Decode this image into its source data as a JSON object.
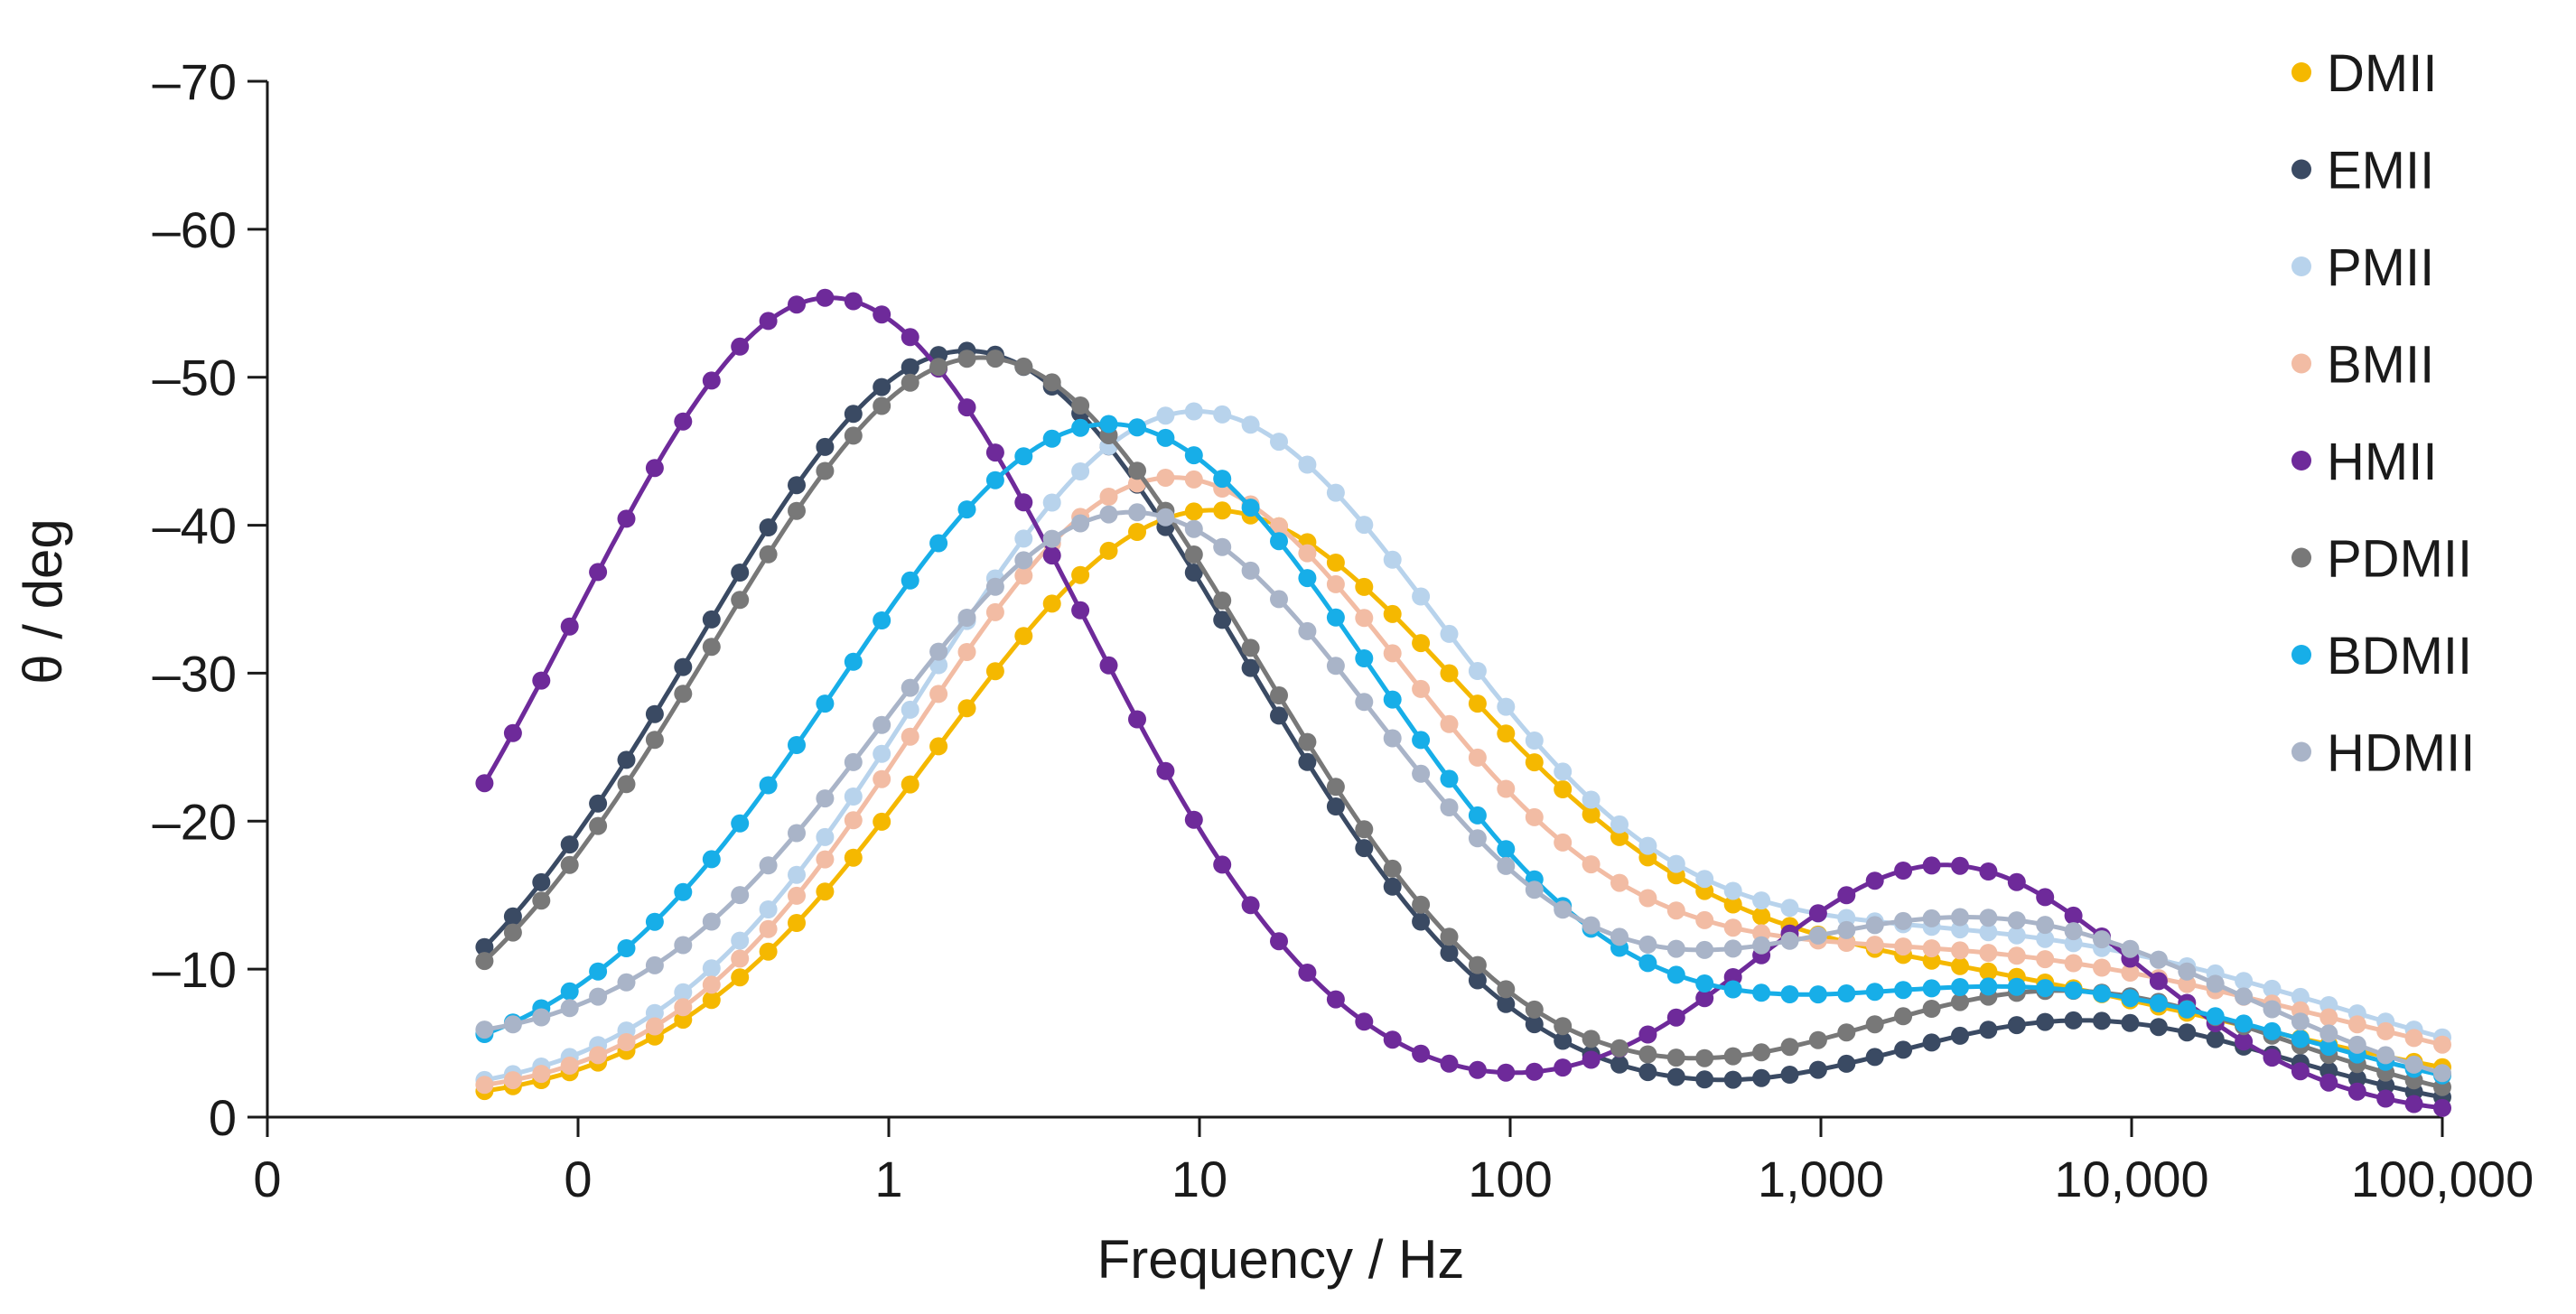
{
  "chart_data": {
    "type": "scatter",
    "title": "",
    "xlabel": "Frequency / Hz",
    "ylabel": "θ / deg",
    "x_scale": "log",
    "xlim": [
      0.01,
      100000
    ],
    "ylim": [
      0,
      -70
    ],
    "x_tick_values": [
      0.01,
      0.1,
      1,
      10,
      100,
      1000,
      10000,
      100000
    ],
    "x_tick_labels": [
      "0",
      "0",
      "1",
      "10",
      "100",
      "1,000",
      "10,000",
      "100,000"
    ],
    "y_tick_values": [
      0,
      -10,
      -20,
      -30,
      -40,
      -50,
      -60,
      -70
    ],
    "y_tick_labels": [
      "0",
      "–10",
      "–20",
      "–30",
      "–40",
      "–50",
      "–60",
      "–70"
    ],
    "legend_position": "right",
    "marker_x_range": [
      0.05,
      100000
    ],
    "marker_count": 70,
    "fit_line": true,
    "series": [
      {
        "name": "DMII",
        "color": "#F5B800",
        "peaks": [
          {
            "amp": 38.0,
            "f": 9.5,
            "w": 0.85
          },
          {
            "amp": 10.0,
            "f": 1200,
            "w": 1.3
          }
        ],
        "base": 1.8,
        "base_f": 0.01
      },
      {
        "name": "EMII",
        "color": "#3A4A63",
        "peaks": [
          {
            "amp": 51.5,
            "f": 1.8,
            "w": 0.88
          },
          {
            "amp": 6.5,
            "f": 7000,
            "w": 0.65
          }
        ],
        "base": 3.0,
        "base_f": 0.001
      },
      {
        "name": "PMII",
        "color": "#B8D3EC",
        "peaks": [
          {
            "amp": 46.0,
            "f": 9.0,
            "w": 0.85
          },
          {
            "amp": 12.0,
            "f": 3000,
            "w": 1.2
          }
        ],
        "base": 3.0,
        "base_f": 0.01
      },
      {
        "name": "BMII",
        "color": "#F2BCA4",
        "peaks": [
          {
            "amp": 41.0,
            "f": 7.5,
            "w": 0.8
          },
          {
            "amp": 11.0,
            "f": 2200,
            "w": 1.3
          }
        ],
        "base": 3.0,
        "base_f": 0.01
      },
      {
        "name": "HMII",
        "color": "#6E2A9A",
        "peaks": [
          {
            "amp": 55.0,
            "f": 0.65,
            "w": 0.82
          },
          {
            "amp": 17.0,
            "f": 2500,
            "w": 0.62
          }
        ],
        "base": 3.0,
        "base_f": 0.001
      },
      {
        "name": "PDMII",
        "color": "#787878",
        "peaks": [
          {
            "amp": 51.0,
            "f": 2.0,
            "w": 0.88
          },
          {
            "amp": 8.5,
            "f": 6000,
            "w": 0.72
          }
        ],
        "base": 3.5,
        "base_f": 0.001
      },
      {
        "name": "BDMII",
        "color": "#17AEE8",
        "peaks": [
          {
            "amp": 46.0,
            "f": 5.2,
            "w": 0.88
          },
          {
            "amp": 8.5,
            "f": 4500,
            "w": 0.9
          }
        ],
        "base": 6.0,
        "base_f": 0.01
      },
      {
        "name": "HDMII",
        "color": "#A9B4C8",
        "peaks": [
          {
            "amp": 39.0,
            "f": 6.2,
            "w": 0.82
          },
          {
            "amp": 13.0,
            "f": 3300,
            "w": 0.85
          }
        ],
        "base": 8.0,
        "base_f": 0.1
      }
    ]
  }
}
